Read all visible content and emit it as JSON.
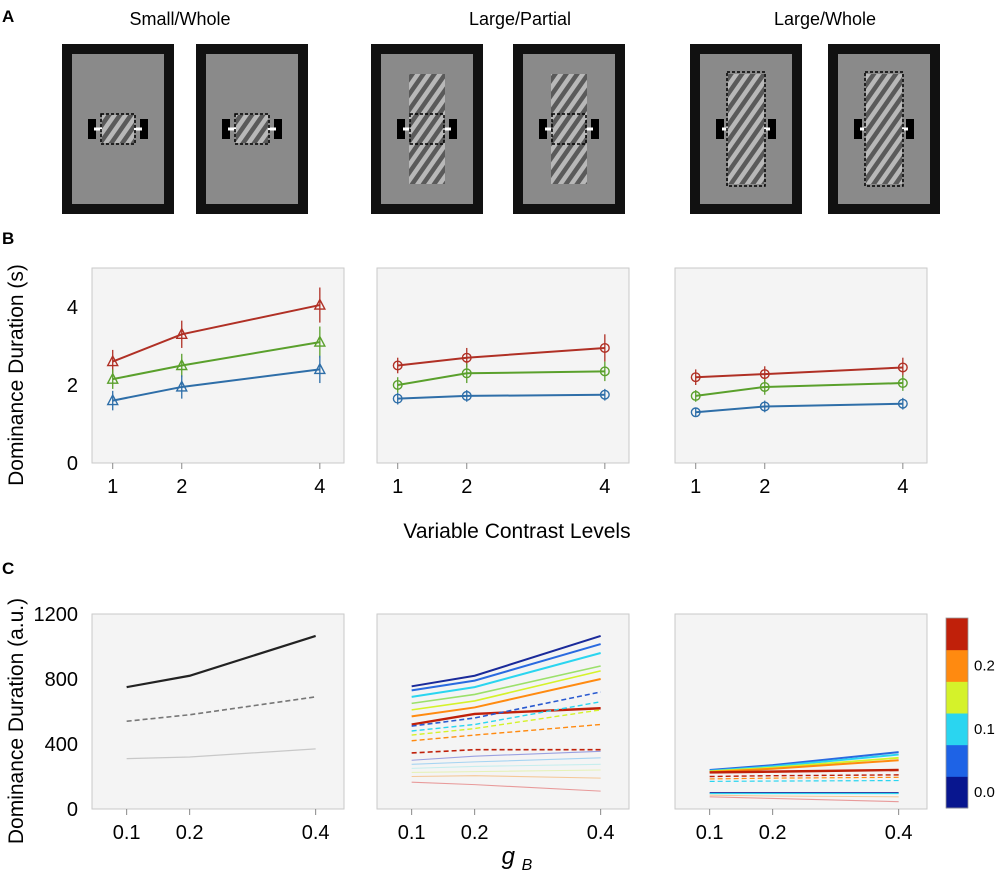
{
  "panel_labels": [
    "A",
    "B",
    "C"
  ],
  "stimuli": {
    "conditions": [
      {
        "title": "Small/Whole",
        "grating": "small",
        "window": "small"
      },
      {
        "title": "Large/Partial",
        "grating": "large",
        "window": "small"
      },
      {
        "title": "Large/Whole",
        "grating": "large",
        "window": "large"
      }
    ]
  },
  "colors": {
    "red": "#b03025",
    "green": "#5aa02c",
    "blue": "#2e6ea8",
    "stim_frame": "#111111",
    "stim_bg": "#8a8a8a",
    "axes_bg": "#f4f4f4"
  },
  "colorbar": {
    "ticks": [
      "0.2",
      "0.1",
      "0.0"
    ],
    "colors": [
      "#08168f",
      "#1e63e6",
      "#2ad5f0",
      "#d5f22a",
      "#ff8a10",
      "#c0200a"
    ]
  },
  "chart_data": [
    {
      "id": "B1",
      "type": "line",
      "title": "",
      "xlabel": "",
      "ylabel": "Dominance Duration (s)",
      "x": [
        1,
        2,
        4
      ],
      "xticks": [
        "1",
        "2",
        "4"
      ],
      "ylim": [
        0,
        5
      ],
      "yticks": [
        "0",
        "2",
        "4"
      ],
      "marker": "triangle",
      "series": [
        {
          "name": "red",
          "values": [
            2.6,
            3.3,
            4.05
          ],
          "err": [
            0.3,
            0.35,
            0.45
          ]
        },
        {
          "name": "green",
          "values": [
            2.15,
            2.5,
            3.1
          ],
          "err": [
            0.25,
            0.3,
            0.4
          ]
        },
        {
          "name": "blue",
          "values": [
            1.6,
            1.95,
            2.4
          ],
          "err": [
            0.25,
            0.3,
            0.35
          ]
        }
      ]
    },
    {
      "id": "B2",
      "type": "line",
      "title": "",
      "xlabel": "Variable Contrast Levels",
      "ylabel": "",
      "x": [
        1,
        2,
        4
      ],
      "xticks": [
        "1",
        "2",
        "4"
      ],
      "ylim": [
        0,
        5
      ],
      "marker": "circle",
      "series": [
        {
          "name": "red",
          "values": [
            2.5,
            2.7,
            2.95
          ],
          "err": [
            0.2,
            0.25,
            0.35
          ]
        },
        {
          "name": "green",
          "values": [
            2.0,
            2.3,
            2.35
          ],
          "err": [
            0.2,
            0.25,
            0.25
          ]
        },
        {
          "name": "blue",
          "values": [
            1.65,
            1.72,
            1.75
          ],
          "err": [
            0.15,
            0.15,
            0.15
          ]
        }
      ]
    },
    {
      "id": "B3",
      "type": "line",
      "title": "",
      "xlabel": "",
      "ylabel": "",
      "x": [
        1,
        2,
        4
      ],
      "xticks": [
        "1",
        "2",
        "4"
      ],
      "ylim": [
        0,
        5
      ],
      "marker": "circle",
      "series": [
        {
          "name": "red",
          "values": [
            2.2,
            2.28,
            2.45
          ],
          "err": [
            0.2,
            0.2,
            0.25
          ]
        },
        {
          "name": "green",
          "values": [
            1.72,
            1.95,
            2.05
          ],
          "err": [
            0.15,
            0.2,
            0.2
          ]
        },
        {
          "name": "blue",
          "values": [
            1.3,
            1.45,
            1.52
          ],
          "err": [
            0.1,
            0.15,
            0.15
          ]
        }
      ]
    },
    {
      "id": "C1",
      "type": "line",
      "title": "",
      "xlabel": "",
      "ylabel": "Dominance Duration (a.u.)",
      "x": [
        0.1,
        0.2,
        0.4
      ],
      "xticks": [
        "0.1",
        "0.2",
        "0.4"
      ],
      "ylim": [
        0,
        1200
      ],
      "yticks": [
        "0",
        "400",
        "800",
        "1200"
      ],
      "series": [
        {
          "name": "solid dark",
          "color": "#222222",
          "dash": "solid",
          "width": 2.2,
          "values": [
            750,
            820,
            1065
          ]
        },
        {
          "name": "dashed",
          "color": "#777777",
          "dash": "dashed",
          "width": 1.6,
          "values": [
            540,
            580,
            690
          ]
        },
        {
          "name": "light",
          "color": "#c8c8c8",
          "dash": "solid",
          "width": 1.2,
          "values": [
            310,
            320,
            370
          ]
        }
      ]
    },
    {
      "id": "C2",
      "type": "line",
      "title": "",
      "xlabel": "g_B",
      "ylabel": "",
      "x": [
        0.1,
        0.2,
        0.4
      ],
      "xticks": [
        "0.1",
        "0.2",
        "0.4"
      ],
      "ylim": [
        0,
        1200
      ],
      "series": [
        {
          "name": "s1",
          "color": "#1a2a9a",
          "dash": "solid",
          "width": 2,
          "values": [
            755,
            820,
            1065
          ]
        },
        {
          "name": "s2",
          "color": "#2a6ae0",
          "dash": "solid",
          "width": 2,
          "values": [
            730,
            790,
            1015
          ]
        },
        {
          "name": "s3",
          "color": "#2ad5f0",
          "dash": "solid",
          "width": 2,
          "values": [
            690,
            750,
            960
          ]
        },
        {
          "name": "s4",
          "color": "#9be06a",
          "dash": "solid",
          "width": 1.6,
          "values": [
            650,
            705,
            880
          ]
        },
        {
          "name": "s5",
          "color": "#d5f22a",
          "dash": "solid",
          "width": 1.6,
          "values": [
            610,
            665,
            850
          ]
        },
        {
          "name": "s6",
          "color": "#ff8a10",
          "dash": "solid",
          "width": 2,
          "values": [
            570,
            625,
            800
          ]
        },
        {
          "name": "s7",
          "color": "#c0200a",
          "dash": "solid",
          "width": 2.4,
          "values": [
            520,
            585,
            620
          ]
        },
        {
          "name": "d1",
          "color": "#2a5ad0",
          "dash": "dashed",
          "width": 1.6,
          "values": [
            510,
            560,
            720
          ]
        },
        {
          "name": "d2",
          "color": "#2ad5f0",
          "dash": "dashed",
          "width": 1.4,
          "values": [
            480,
            520,
            660
          ]
        },
        {
          "name": "d3",
          "color": "#d5f22a",
          "dash": "dashed",
          "width": 1.4,
          "values": [
            455,
            495,
            610
          ]
        },
        {
          "name": "d4",
          "color": "#ff8a10",
          "dash": "dashed",
          "width": 1.4,
          "values": [
            420,
            455,
            520
          ]
        },
        {
          "name": "d5",
          "color": "#c0200a",
          "dash": "dashed",
          "width": 1.6,
          "values": [
            345,
            365,
            365
          ]
        },
        {
          "name": "l1",
          "color": "#9aa0e0",
          "dash": "solid",
          "width": 1.1,
          "values": [
            300,
            325,
            355
          ]
        },
        {
          "name": "l2",
          "color": "#a6d4f2",
          "dash": "solid",
          "width": 1.1,
          "values": [
            275,
            290,
            315
          ]
        },
        {
          "name": "l3",
          "color": "#c6eeee",
          "dash": "solid",
          "width": 1.1,
          "values": [
            250,
            262,
            275
          ]
        },
        {
          "name": "l4",
          "color": "#e6f2b8",
          "dash": "solid",
          "width": 1.1,
          "values": [
            225,
            230,
            240
          ]
        },
        {
          "name": "l5",
          "color": "#f5c898",
          "dash": "solid",
          "width": 1.1,
          "values": [
            200,
            205,
            190
          ]
        },
        {
          "name": "l6",
          "color": "#e89a9a",
          "dash": "solid",
          "width": 1.1,
          "values": [
            165,
            150,
            110
          ]
        }
      ]
    },
    {
      "id": "C3",
      "type": "line",
      "title": "",
      "xlabel": "",
      "ylabel": "",
      "x": [
        0.1,
        0.2,
        0.4
      ],
      "xticks": [
        "0.1",
        "0.2",
        "0.4"
      ],
      "ylim": [
        0,
        1200
      ],
      "series": [
        {
          "name": "s1",
          "color": "#2a6ae0",
          "dash": "solid",
          "width": 2,
          "values": [
            240,
            270,
            350
          ]
        },
        {
          "name": "s2",
          "color": "#2ad5f0",
          "dash": "solid",
          "width": 2,
          "values": [
            235,
            262,
            335
          ]
        },
        {
          "name": "s3",
          "color": "#d5f22a",
          "dash": "solid",
          "width": 1.8,
          "values": [
            232,
            255,
            315
          ]
        },
        {
          "name": "s4",
          "color": "#ff8a10",
          "dash": "solid",
          "width": 2,
          "values": [
            228,
            248,
            300
          ]
        },
        {
          "name": "s5",
          "color": "#c0200a",
          "dash": "solid",
          "width": 2.4,
          "values": [
            225,
            230,
            240
          ]
        },
        {
          "name": "d1",
          "color": "#c0200a",
          "dash": "dashed",
          "width": 1.4,
          "values": [
            200,
            205,
            210
          ]
        },
        {
          "name": "d2",
          "color": "#ff8a10",
          "dash": "dashed",
          "width": 1.2,
          "values": [
            185,
            190,
            195
          ]
        },
        {
          "name": "d3",
          "color": "#2ad5f0",
          "dash": "dashed",
          "width": 1.2,
          "values": [
            170,
            172,
            175
          ]
        },
        {
          "name": "l1",
          "color": "#1a2a9a",
          "dash": "solid",
          "width": 1.2,
          "values": [
            100,
            100,
            100
          ]
        },
        {
          "name": "l2",
          "color": "#2ad5f0",
          "dash": "solid",
          "width": 1.2,
          "values": [
            95,
            95,
            95
          ]
        },
        {
          "name": "l3",
          "color": "#f5c898",
          "dash": "solid",
          "width": 1.1,
          "values": [
            85,
            80,
            75
          ]
        },
        {
          "name": "l4",
          "color": "#e89a9a",
          "dash": "solid",
          "width": 1.1,
          "values": [
            75,
            65,
            45
          ]
        }
      ]
    }
  ]
}
